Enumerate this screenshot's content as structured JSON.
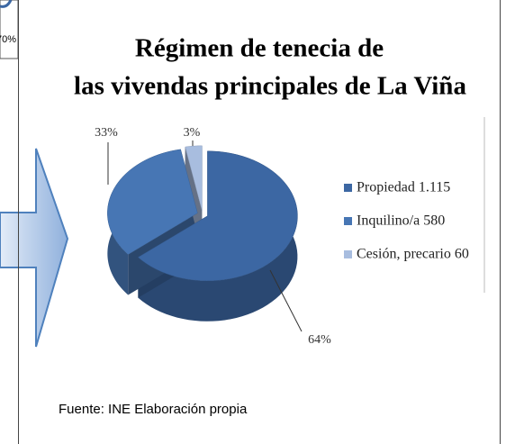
{
  "fragment": {
    "label": "70%"
  },
  "chart_data": {
    "type": "pie",
    "title": [
      "Régimen de tenecia de",
      "las vivendas principales de La Viña"
    ],
    "categories": [
      "Propiedad 1.115",
      "Inquilino/a 580",
      "Cesión, precario 60"
    ],
    "values": [
      64,
      33,
      3
    ],
    "value_labels": [
      "64%",
      "33%",
      "3%"
    ],
    "colors": [
      "#3c67a3",
      "#4776b4",
      "#a8bddf"
    ],
    "legend": "right",
    "source": "Fuente: INE Elaboración propia"
  }
}
